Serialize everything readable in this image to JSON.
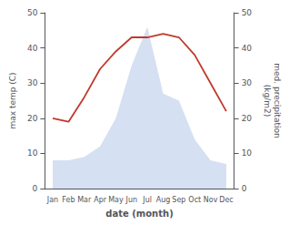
{
  "chart_data": {
    "type": "line",
    "xlabel": "date (month)",
    "ylabel": "max temp (C)",
    "y2label": "med. precipitation\n(kg/m2)",
    "categories": [
      "Jan",
      "Feb",
      "Mar",
      "Apr",
      "May",
      "Jun",
      "Jul",
      "Aug",
      "Sep",
      "Oct",
      "Nov",
      "Dec"
    ],
    "series": [
      {
        "type": "area",
        "color": "#b3c6e8",
        "values": [
          8,
          8,
          9,
          12,
          20,
          35,
          46,
          27,
          25,
          14,
          8,
          7
        ]
      },
      {
        "type": "line",
        "color": "#c0392b",
        "axis": "y2",
        "values": [
          20,
          19,
          26,
          34,
          39,
          43,
          43,
          44,
          43,
          38,
          30,
          22
        ]
      }
    ],
    "ylim": [
      0,
      50
    ],
    "yticks": [
      0,
      10,
      20,
      30,
      40,
      50
    ],
    "y2lim": [
      0,
      50
    ],
    "y2ticks": [
      0,
      10,
      20,
      30,
      40,
      50
    ],
    "grid": false
  }
}
